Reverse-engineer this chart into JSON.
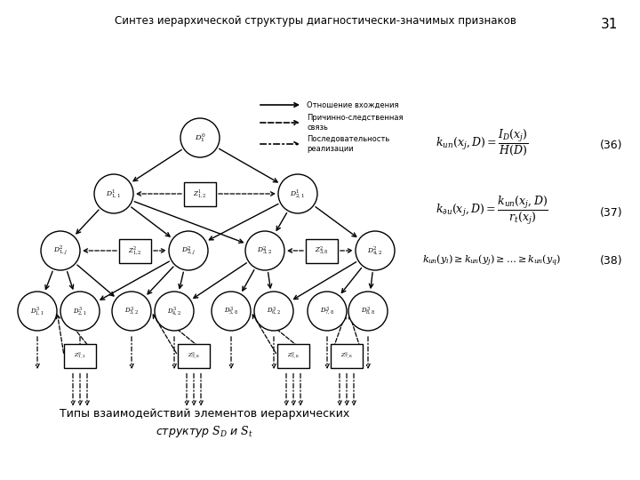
{
  "title": "Синтез иерархической структуры диагностически-значимых признаков",
  "page_number": "31",
  "leg_solid": "Отношение вхождения",
  "leg_dashed": "Причинно-следственная связь",
  "leg_dashdot": "Последовательность реализации",
  "caption_line1": "Типы взаимодействий элементов иерархических",
  "caption_line2": "структур $\\boldsymbol{S_D}$ и $\\boldsymbol{S_t}$",
  "bg_color": "#ffffff"
}
